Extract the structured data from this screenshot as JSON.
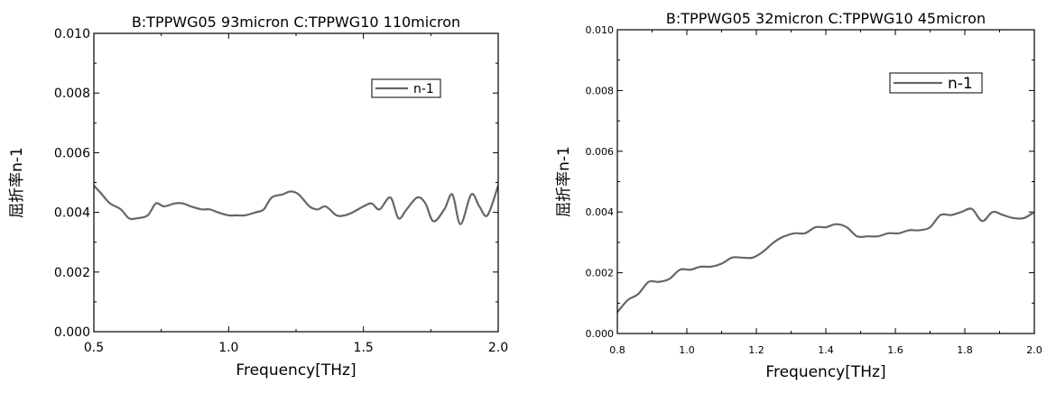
{
  "chart_data": [
    {
      "type": "line",
      "title": "B:TPPWG05 93micron C:TPPWG10 110micron",
      "xlabel": "Frequency[THz]",
      "ylabel": "屈折率n-1",
      "xlim": [
        0.5,
        2.0
      ],
      "ylim": [
        0.0,
        0.01
      ],
      "xticks": [
        "0.5",
        "1.0",
        "1.5",
        "2.0"
      ],
      "yticks": [
        "0.000",
        "0.002",
        "0.004",
        "0.006",
        "0.008",
        "0.010"
      ],
      "legend": "top-right",
      "series": [
        {
          "name": "n-1",
          "color": "#666666",
          "x": [
            0.5,
            0.53,
            0.56,
            0.6,
            0.63,
            0.66,
            0.7,
            0.73,
            0.76,
            0.8,
            0.83,
            0.86,
            0.9,
            0.93,
            0.96,
            1.0,
            1.03,
            1.06,
            1.1,
            1.13,
            1.16,
            1.2,
            1.23,
            1.26,
            1.3,
            1.33,
            1.36,
            1.4,
            1.43,
            1.46,
            1.5,
            1.53,
            1.56,
            1.6,
            1.63,
            1.66,
            1.7,
            1.73,
            1.76,
            1.8,
            1.83,
            1.86,
            1.9,
            1.93,
            1.96,
            2.0
          ],
          "y": [
            0.0049,
            0.0046,
            0.0043,
            0.0041,
            0.0038,
            0.0038,
            0.0039,
            0.0043,
            0.0042,
            0.0043,
            0.0043,
            0.0042,
            0.0041,
            0.0041,
            0.004,
            0.0039,
            0.0039,
            0.0039,
            0.004,
            0.0041,
            0.0045,
            0.0046,
            0.0047,
            0.0046,
            0.0042,
            0.0041,
            0.0042,
            0.0039,
            0.0039,
            0.004,
            0.0042,
            0.0043,
            0.0041,
            0.0045,
            0.0038,
            0.0041,
            0.0045,
            0.0043,
            0.0037,
            0.0041,
            0.0046,
            0.0036,
            0.0046,
            0.0042,
            0.0039,
            0.0049
          ]
        }
      ]
    },
    {
      "type": "line",
      "title": "B:TPPWG05 32micron C:TPPWG10 45micron",
      "xlabel": "Frequency[THz]",
      "ylabel": "屈折率n-1",
      "xlim": [
        0.8,
        2.0
      ],
      "ylim": [
        0.0,
        0.01
      ],
      "xticks": [
        "0.8",
        "1.0",
        "1.2",
        "1.4",
        "1.6",
        "1.8",
        "2.0"
      ],
      "yticks": [
        "0.000",
        "0.002",
        "0.004",
        "0.006",
        "0.008",
        "0.010"
      ],
      "legend": "top-right",
      "series": [
        {
          "name": "n-1",
          "color": "#666666",
          "x": [
            0.8,
            0.83,
            0.86,
            0.89,
            0.92,
            0.95,
            0.98,
            1.01,
            1.04,
            1.07,
            1.1,
            1.13,
            1.16,
            1.19,
            1.22,
            1.25,
            1.28,
            1.31,
            1.34,
            1.37,
            1.4,
            1.43,
            1.46,
            1.49,
            1.52,
            1.55,
            1.58,
            1.61,
            1.64,
            1.67,
            1.7,
            1.73,
            1.76,
            1.79,
            1.82,
            1.85,
            1.88,
            1.91,
            1.94,
            1.97,
            2.0
          ],
          "y": [
            0.0007,
            0.0011,
            0.0013,
            0.0017,
            0.0017,
            0.0018,
            0.0021,
            0.0021,
            0.0022,
            0.0022,
            0.0023,
            0.0025,
            0.0025,
            0.0025,
            0.0027,
            0.003,
            0.0032,
            0.0033,
            0.0033,
            0.0035,
            0.0035,
            0.0036,
            0.0035,
            0.0032,
            0.0032,
            0.0032,
            0.0033,
            0.0033,
            0.0034,
            0.0034,
            0.0035,
            0.0039,
            0.0039,
            0.004,
            0.0041,
            0.0037,
            0.004,
            0.0039,
            0.0038,
            0.0038,
            0.004
          ]
        }
      ]
    }
  ]
}
